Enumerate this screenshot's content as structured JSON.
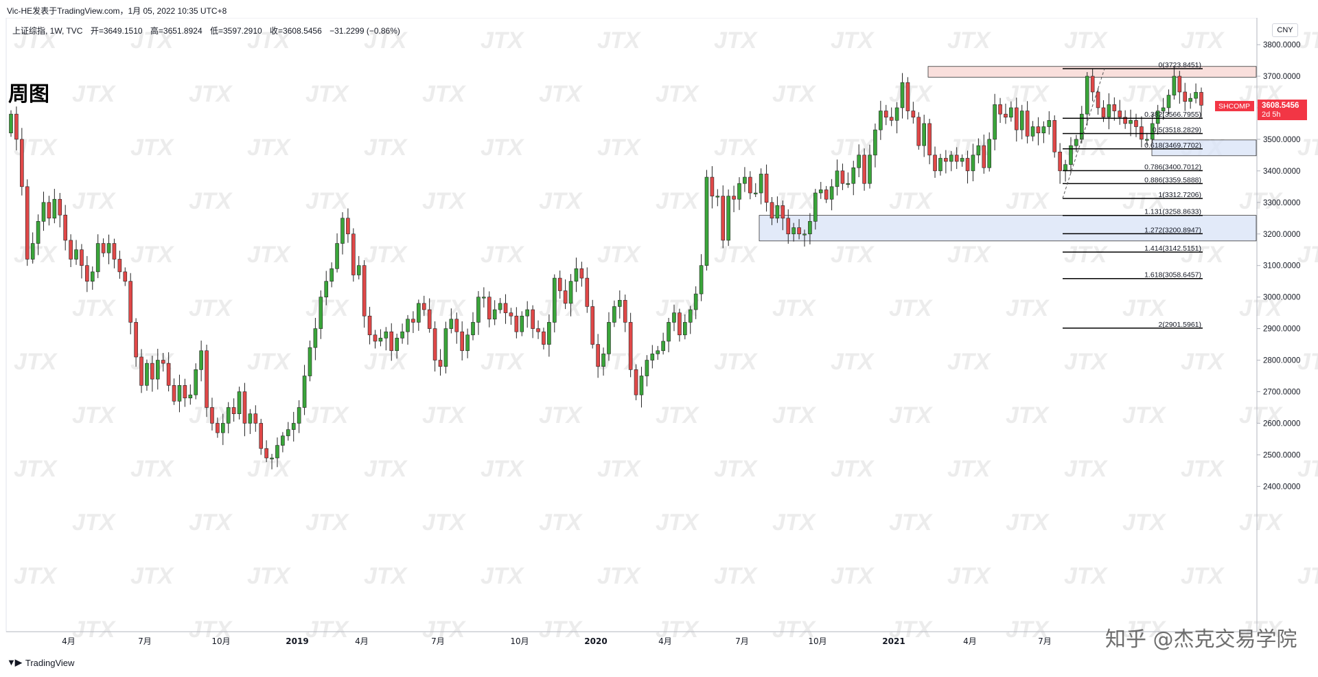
{
  "header": {
    "title": "Vic-HE发表于TradingView.com，1月 05, 2022 10:35 UTC+8"
  },
  "legend": {
    "symbol": "上证综指, 1W, TVC",
    "open": "开=3649.1510",
    "high": "高=3651.8924",
    "low": "低=3597.2910",
    "close": "收=3608.5456",
    "change": "−31.2299 (−0.86%)"
  },
  "annotation": "周图",
  "currency": "CNY",
  "price_tag": {
    "symbol": "SHCOMP",
    "price": "3608.5456",
    "countdown": "2d 5h"
  },
  "footer": {
    "brand": "TradingView",
    "zhihu": "知乎 @杰克交易学院"
  },
  "watermark_text": "JTX",
  "colors": {
    "up": "#26a69a",
    "bull_body": "#3aa53a",
    "bear_body": "#e04848",
    "price_tag": "#f23645",
    "fib_line": "#000000"
  },
  "chart_data": {
    "type": "candlestick",
    "y_range": [
      2310,
      3890
    ],
    "y_ticks": [
      "3800.0000",
      "3700.0000",
      "3600.0000",
      "3500.0000",
      "3400.0000",
      "3300.0000",
      "3200.0000",
      "3100.0000",
      "3000.0000",
      "2900.0000",
      "2800.0000",
      "2700.0000",
      "2600.0000",
      "2500.0000",
      "2400.0000"
    ],
    "y_tick_values": [
      3800,
      3700,
      3600,
      3500,
      3400,
      3300,
      3200,
      3100,
      3000,
      2900,
      2800,
      2700,
      2600,
      2500,
      2400
    ],
    "x_labels": [
      "4月",
      "7月",
      "10月",
      "2019",
      "4月",
      "7月",
      "10月",
      "2020",
      "4月",
      "7月",
      "10月",
      "2021",
      "4月",
      "7月"
    ],
    "fib_levels": [
      {
        "label": "0(3723.8451)",
        "value": 3723.8451
      },
      {
        "label": "0.382(3566.7955)",
        "value": 3566.7955
      },
      {
        "label": "0.5(3518.2829)",
        "value": 3518.2829
      },
      {
        "label": "0.618(3469.7702)",
        "value": 3469.7702
      },
      {
        "label": "0.786(3400.7012)",
        "value": 3400.7012
      },
      {
        "label": "0.886(3359.5888)",
        "value": 3359.5888
      },
      {
        "label": "1(3312.7206)",
        "value": 3312.7206
      },
      {
        "label": "1.131(3258.8633)",
        "value": 3258.8633
      },
      {
        "label": "1.272(3200.8947)",
        "value": 3200.8947
      },
      {
        "label": "1.414(3142.5151)",
        "value": 3142.5151
      },
      {
        "label": "1.618(3058.6457)",
        "value": 3058.6457
      },
      {
        "label": "2(2901.5961)",
        "value": 2901.5961
      }
    ],
    "zones": [
      {
        "name": "resistance",
        "top": 3731,
        "bottom": 3697,
        "color": "#f8d7d3"
      },
      {
        "name": "golden-pocket",
        "top": 3498,
        "bottom": 3448,
        "color": "#dbe5f8"
      },
      {
        "name": "support",
        "top": 3259,
        "bottom": 3178,
        "color": "#dbe5f8"
      }
    ],
    "closes": [
      3580,
      3500,
      3350,
      3120,
      3170,
      3240,
      3300,
      3250,
      3310,
      3260,
      3180,
      3120,
      3150,
      3100,
      3050,
      3080,
      3170,
      3140,
      3170,
      3120,
      3080,
      3050,
      2920,
      2810,
      2720,
      2790,
      2740,
      2800,
      2790,
      2720,
      2670,
      2720,
      2680,
      2690,
      2770,
      2830,
      2650,
      2600,
      2570,
      2600,
      2650,
      2630,
      2700,
      2600,
      2630,
      2600,
      2520,
      2490,
      2490,
      2530,
      2560,
      2580,
      2600,
      2650,
      2750,
      2840,
      2900,
      3000,
      3050,
      3090,
      3170,
      3250,
      3200,
      3070,
      3100,
      2940,
      2880,
      2860,
      2870,
      2890,
      2830,
      2870,
      2890,
      2930,
      2920,
      2980,
      2960,
      2900,
      2800,
      2780,
      2900,
      2930,
      2890,
      2830,
      2880,
      2920,
      3000,
      3000,
      2930,
      2960,
      2980,
      2950,
      2940,
      2890,
      2940,
      2960,
      2900,
      2890,
      2850,
      2920,
      3060,
      3020,
      2980,
      3050,
      3090,
      3060,
      2970,
      2850,
      2780,
      2820,
      2920,
      2970,
      2990,
      2920,
      2770,
      2690,
      2750,
      2800,
      2820,
      2830,
      2860,
      2920,
      2950,
      2880,
      2920,
      2960,
      3010,
      3100,
      3380,
      3320,
      3320,
      3180,
      3320,
      3310,
      3360,
      3380,
      3330,
      3330,
      3390,
      3300,
      3250,
      3290,
      3250,
      3200,
      3220,
      3200,
      3200,
      3240,
      3330,
      3340,
      3310,
      3350,
      3400,
      3360,
      3360,
      3410,
      3450,
      3360,
      3450,
      3530,
      3590,
      3570,
      3560,
      3600,
      3680,
      3590,
      3570,
      3480,
      3550,
      3450,
      3400,
      3440,
      3430,
      3450,
      3430,
      3440,
      3400,
      3450,
      3480,
      3410,
      3500,
      3610,
      3580,
      3570,
      3600,
      3530,
      3590,
      3510,
      3540,
      3520,
      3540,
      3560,
      3460,
      3400,
      3420,
      3480,
      3500,
      3580,
      3700,
      3650,
      3600,
      3570,
      3610,
      3590,
      3570,
      3550,
      3560,
      3540,
      3500,
      3500,
      3550,
      3590,
      3600,
      3640,
      3700,
      3650,
      3620,
      3630,
      3649,
      3608
    ]
  }
}
